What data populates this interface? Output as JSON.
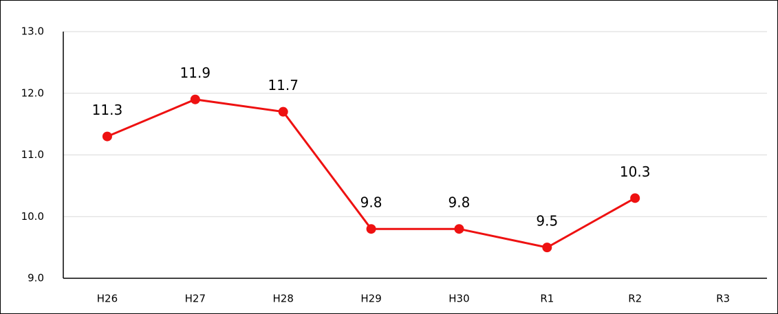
{
  "chart_data": {
    "type": "line",
    "categories": [
      "H26",
      "H27",
      "H28",
      "H29",
      "H30",
      "R1",
      "R2",
      "R3"
    ],
    "series": [
      {
        "color": "#ee1111",
        "values": [
          11.3,
          11.9,
          11.7,
          9.8,
          9.8,
          9.5,
          10.3,
          null
        ]
      }
    ],
    "ylim": [
      9,
      13
    ],
    "yticks": [
      {
        "value": 9,
        "label": "9.0"
      },
      {
        "value": 10,
        "label": "10.0"
      },
      {
        "value": 11,
        "label": "11.0"
      },
      {
        "value": 12,
        "label": "12.0"
      },
      {
        "value": 13,
        "label": "13.0"
      }
    ],
    "grid": true,
    "data_labels": true
  }
}
